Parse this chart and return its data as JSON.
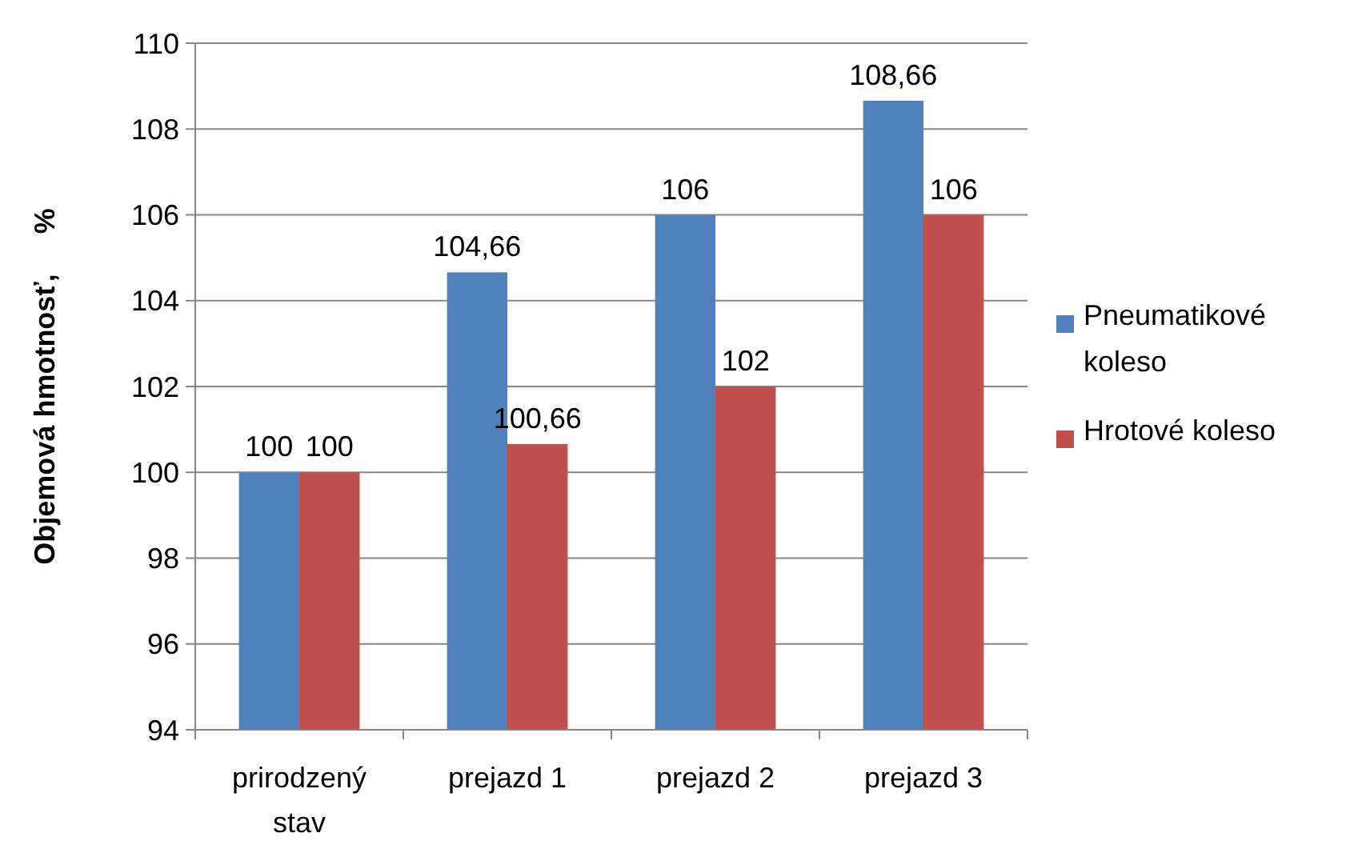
{
  "chart_data": {
    "type": "bar",
    "ylabel": "Objemová hmotnosť,     %",
    "categories": [
      "prirodzený stav",
      "prejazd 1",
      "prejazd 2",
      "prejazd 3"
    ],
    "series": [
      {
        "name": "Pneumatikové koleso",
        "color": "#4f81bd",
        "values": [
          100,
          104.66,
          106,
          108.66
        ],
        "value_labels": [
          "100",
          "104,66",
          "106",
          "108,66"
        ]
      },
      {
        "name": "Hrotové koleso",
        "color": "#c0504d",
        "values": [
          100,
          100.66,
          102,
          106
        ],
        "value_labels": [
          "100",
          "100,66",
          "102",
          "106"
        ]
      }
    ],
    "ylim": [
      94,
      110
    ],
    "yticks": [
      94,
      96,
      98,
      100,
      102,
      104,
      106,
      108,
      110
    ],
    "grid": "y",
    "legend": "right"
  }
}
